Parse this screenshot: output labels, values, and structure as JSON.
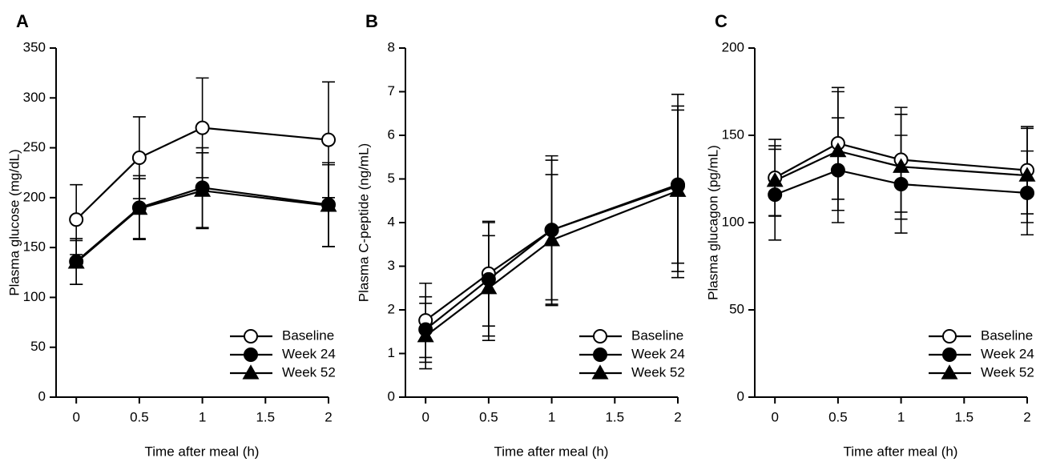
{
  "chart_data": [
    {
      "type": "line",
      "label": "A",
      "y_label": "Plasma glucose (mg/dL)",
      "x_label": "Time after meal (h)",
      "x": [
        0,
        0.5,
        1,
        2
      ],
      "xlim": [
        -0.16,
        2
      ],
      "xticks": [
        0,
        0.5,
        1,
        1.5,
        2
      ],
      "ylim": [
        0,
        350
      ],
      "yticks": [
        0,
        50,
        100,
        150,
        200,
        250,
        300,
        350
      ],
      "legend": "lower right",
      "series": [
        {
          "name": "Baseline",
          "color": "#000000",
          "marker": "circle-open",
          "values": [
            178,
            240,
            270,
            258
          ],
          "errors": [
            35,
            41,
            50,
            58
          ]
        },
        {
          "name": "Week 24",
          "color": "#000000",
          "marker": "circle",
          "values": [
            136,
            190,
            210,
            193
          ],
          "errors": [
            23,
            32,
            40,
            42
          ]
        },
        {
          "name": "Week 52",
          "color": "#000000",
          "marker": "triangle",
          "values": [
            135,
            189,
            207,
            192
          ],
          "errors": [
            22,
            30,
            38,
            41
          ]
        }
      ]
    },
    {
      "type": "line",
      "label": "B",
      "y_label": "Plasma C-peptide (ng/mL)",
      "x_label": "Time after meal (h)",
      "x": [
        0,
        0.5,
        1,
        2
      ],
      "xlim": [
        -0.16,
        2
      ],
      "xticks": [
        0,
        0.5,
        1,
        1.5,
        2
      ],
      "ylim": [
        0,
        8
      ],
      "yticks": [
        0,
        1,
        2,
        3,
        4,
        5,
        6,
        7,
        8
      ],
      "legend": "lower right",
      "series": [
        {
          "name": "Baseline",
          "color": "#000000",
          "marker": "circle-open",
          "values": [
            1.76,
            2.83,
            3.83,
            4.84
          ],
          "errors": [
            0.85,
            1.2,
            1.7,
            2.1
          ]
        },
        {
          "name": "Week 24",
          "color": "#000000",
          "marker": "circle",
          "values": [
            1.55,
            2.7,
            3.83,
            4.87
          ],
          "errors": [
            0.75,
            1.3,
            1.6,
            1.8
          ]
        },
        {
          "name": "Week 52",
          "color": "#000000",
          "marker": "triangle",
          "values": [
            1.4,
            2.5,
            3.6,
            4.73
          ],
          "errors": [
            0.75,
            1.2,
            1.5,
            1.85
          ]
        }
      ]
    },
    {
      "type": "line",
      "label": "C",
      "y_label": "Plasma glucagon (pg/mL)",
      "x_label": "Time after meal (h)",
      "x": [
        0,
        0.5,
        1,
        2
      ],
      "xlim": [
        -0.16,
        2
      ],
      "xticks": [
        0,
        0.5,
        1,
        1.5,
        2
      ],
      "ylim": [
        0,
        200
      ],
      "yticks": [
        0,
        50,
        100,
        150,
        200
      ],
      "legend": "lower right",
      "series": [
        {
          "name": "Baseline",
          "color": "#000000",
          "marker": "circle-open",
          "values": [
            125.7,
            145.4,
            136,
            130
          ],
          "errors": [
            22,
            32,
            30,
            25
          ]
        },
        {
          "name": "Week 24",
          "color": "#000000",
          "marker": "circle",
          "values": [
            116,
            130,
            122,
            117
          ],
          "errors": [
            26,
            30,
            28,
            24
          ]
        },
        {
          "name": "Week 52",
          "color": "#000000",
          "marker": "triangle",
          "values": [
            124,
            141,
            132,
            127
          ],
          "errors": [
            20,
            34,
            30,
            27
          ]
        }
      ]
    }
  ]
}
